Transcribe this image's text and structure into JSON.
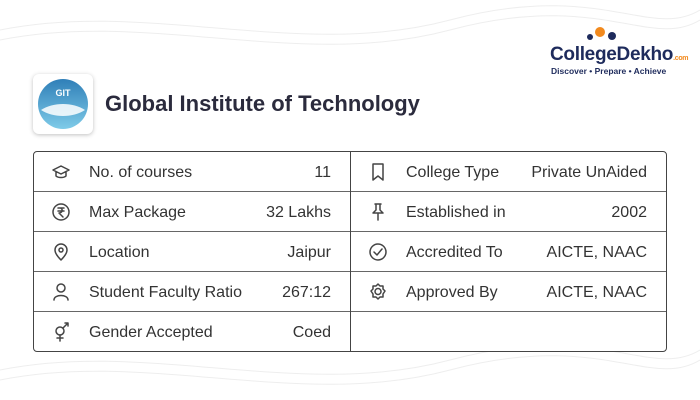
{
  "brand": {
    "name": "CollegeDekho",
    "suffix": ".com",
    "tagline": "Discover • Prepare • Achieve"
  },
  "college": {
    "logo_text": "GIT",
    "name": "Global Institute of Technology"
  },
  "details": {
    "left": [
      {
        "label": "No. of courses",
        "value": "11"
      },
      {
        "label": "Max Package",
        "value": "32 Lakhs"
      },
      {
        "label": "Location",
        "value": "Jaipur"
      },
      {
        "label": "Student Faculty Ratio",
        "value": "267:12"
      },
      {
        "label": "Gender Accepted",
        "value": "Coed"
      }
    ],
    "right": [
      {
        "label": "College Type",
        "value": "Private UnAided"
      },
      {
        "label": "Established in",
        "value": "2002"
      },
      {
        "label": "Accredited To",
        "value": "AICTE, NAAC"
      },
      {
        "label": "Approved By",
        "value": "AICTE, NAAC"
      }
    ]
  }
}
